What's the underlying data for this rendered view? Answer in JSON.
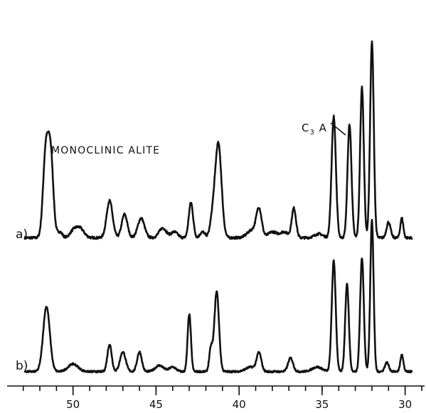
{
  "chart_data": {
    "type": "line",
    "title": "",
    "xlabel": "",
    "ylabel": "",
    "x_reversed": true,
    "xlim": [
      53.5,
      29.0
    ],
    "x_ticks": [
      50,
      45,
      40,
      35,
      30
    ],
    "x_tick_labels": [
      "50",
      "45",
      "40",
      "35",
      "30"
    ],
    "x_minor_step": 1,
    "grid": false,
    "legend": "none",
    "annotations": {
      "top_label": "MONOCLINIC ALITE",
      "peak_label": "C",
      "peak_label_sub": "3",
      "peak_label_suffix": " A",
      "peak_label_x": 33.3
    },
    "y_units": "relative intensity (0 = baseline, 1 = tallest peak)",
    "series": [
      {
        "name": "a)",
        "x_start": 52.9,
        "x_end": 29.6,
        "baseline": 0.02,
        "peaks": [
          {
            "x": 51.65,
            "h": 0.42,
            "w": 0.16
          },
          {
            "x": 51.35,
            "h": 0.42,
            "w": 0.16
          },
          {
            "x": 50.8,
            "h": 0.03,
            "w": 0.15
          },
          {
            "x": 50.0,
            "h": 0.03,
            "w": 0.2
          },
          {
            "x": 49.6,
            "h": 0.05,
            "w": 0.25
          },
          {
            "x": 47.8,
            "h": 0.19,
            "w": 0.18
          },
          {
            "x": 46.9,
            "h": 0.12,
            "w": 0.17
          },
          {
            "x": 45.9,
            "h": 0.1,
            "w": 0.2
          },
          {
            "x": 44.6,
            "h": 0.05,
            "w": 0.22
          },
          {
            "x": 43.9,
            "h": 0.03,
            "w": 0.2
          },
          {
            "x": 42.9,
            "h": 0.18,
            "w": 0.13
          },
          {
            "x": 42.2,
            "h": 0.03,
            "w": 0.15
          },
          {
            "x": 41.6,
            "h": 0.09,
            "w": 0.15
          },
          {
            "x": 41.25,
            "h": 0.48,
            "w": 0.19
          },
          {
            "x": 39.2,
            "h": 0.04,
            "w": 0.3
          },
          {
            "x": 38.8,
            "h": 0.14,
            "w": 0.16
          },
          {
            "x": 38.0,
            "h": 0.03,
            "w": 0.25
          },
          {
            "x": 37.3,
            "h": 0.03,
            "w": 0.25
          },
          {
            "x": 36.7,
            "h": 0.15,
            "w": 0.13
          },
          {
            "x": 35.2,
            "h": 0.02,
            "w": 0.25
          },
          {
            "x": 34.3,
            "h": 0.62,
            "w": 0.13
          },
          {
            "x": 33.35,
            "h": 0.58,
            "w": 0.12
          },
          {
            "x": 32.6,
            "h": 0.77,
            "w": 0.11
          },
          {
            "x": 32.0,
            "h": 1.0,
            "w": 0.11
          },
          {
            "x": 31.0,
            "h": 0.08,
            "w": 0.12
          },
          {
            "x": 30.2,
            "h": 0.1,
            "w": 0.09
          }
        ]
      },
      {
        "name": "b)",
        "x_start": 52.9,
        "x_end": 29.6,
        "baseline": 0.02,
        "peaks": [
          {
            "x": 51.6,
            "h": 0.43,
            "w": 0.2
          },
          {
            "x": 50.0,
            "h": 0.05,
            "w": 0.3
          },
          {
            "x": 47.8,
            "h": 0.18,
            "w": 0.13
          },
          {
            "x": 47.0,
            "h": 0.13,
            "w": 0.17
          },
          {
            "x": 46.0,
            "h": 0.13,
            "w": 0.14
          },
          {
            "x": 44.8,
            "h": 0.04,
            "w": 0.25
          },
          {
            "x": 44.0,
            "h": 0.03,
            "w": 0.2
          },
          {
            "x": 43.0,
            "h": 0.38,
            "w": 0.1
          },
          {
            "x": 41.7,
            "h": 0.15,
            "w": 0.1
          },
          {
            "x": 41.35,
            "h": 0.53,
            "w": 0.14
          },
          {
            "x": 39.3,
            "h": 0.03,
            "w": 0.3
          },
          {
            "x": 38.8,
            "h": 0.12,
            "w": 0.14
          },
          {
            "x": 36.9,
            "h": 0.09,
            "w": 0.15
          },
          {
            "x": 35.3,
            "h": 0.03,
            "w": 0.3
          },
          {
            "x": 34.3,
            "h": 0.73,
            "w": 0.12
          },
          {
            "x": 33.5,
            "h": 0.58,
            "w": 0.11
          },
          {
            "x": 32.6,
            "h": 0.75,
            "w": 0.11
          },
          {
            "x": 32.0,
            "h": 1.0,
            "w": 0.1
          },
          {
            "x": 31.1,
            "h": 0.06,
            "w": 0.12
          },
          {
            "x": 30.2,
            "h": 0.11,
            "w": 0.09
          }
        ]
      }
    ]
  }
}
